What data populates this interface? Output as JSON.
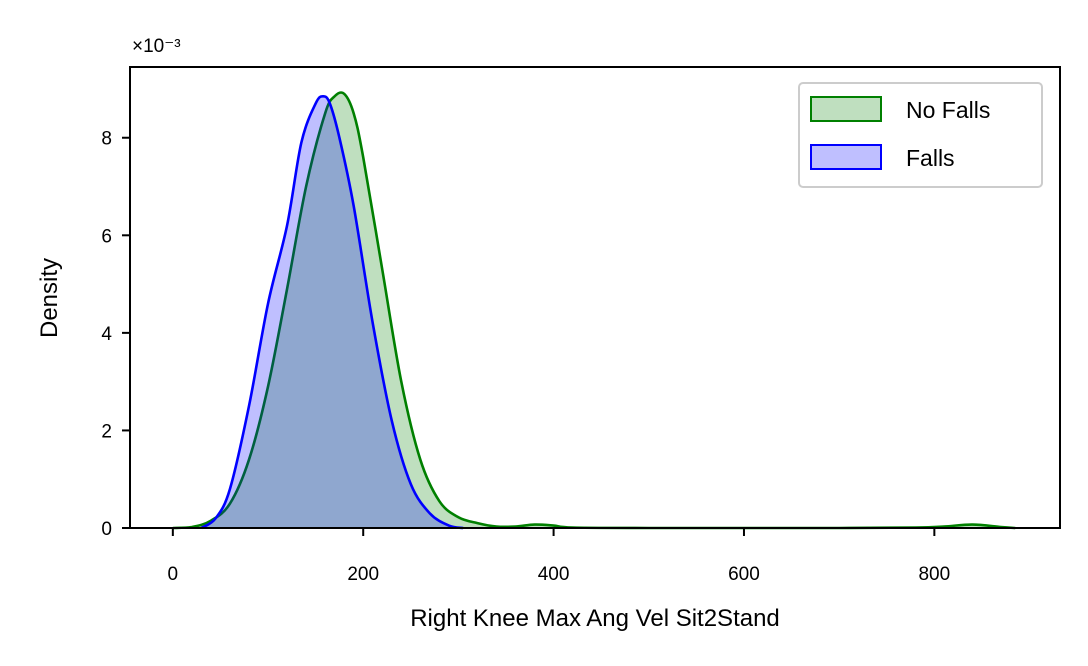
{
  "chart_data": {
    "type": "area",
    "xlabel": "Right Knee Max Ang Vel Sit2Stand",
    "ylabel": "Density",
    "y_offset_label": "×10⁻³",
    "xlim": [
      -45,
      932
    ],
    "ylim": [
      0,
      9.45
    ],
    "xticks": [
      0,
      200,
      400,
      600,
      800
    ],
    "xtick_labels": [
      "0",
      "200",
      "400",
      "600",
      "800"
    ],
    "yticks": [
      0,
      2,
      4,
      6,
      8
    ],
    "ytick_labels": [
      "0",
      "2",
      "4",
      "6",
      "8"
    ],
    "y_unit_scale": "1e-3",
    "grid": false,
    "legend_position": "top-right",
    "series": [
      {
        "name": "No Falls",
        "line_color": "#008000",
        "fill_color": "#008000",
        "fill_opacity": 0.25,
        "x": [
          0,
          20,
          40,
          60,
          80,
          100,
          120,
          140,
          160,
          170,
          180,
          190,
          200,
          220,
          240,
          260,
          280,
          300,
          320,
          340,
          360,
          380,
          400,
          420,
          500,
          600,
          700,
          780,
          810,
          840,
          870,
          885
        ],
        "y": [
          0,
          0.02,
          0.15,
          0.5,
          1.4,
          2.9,
          4.9,
          7.0,
          8.5,
          8.85,
          8.9,
          8.5,
          7.6,
          5.3,
          3.0,
          1.4,
          0.55,
          0.22,
          0.1,
          0.03,
          0.03,
          0.07,
          0.05,
          0.01,
          0.0,
          0.0,
          0.0,
          0.01,
          0.03,
          0.07,
          0.02,
          0.0
        ]
      },
      {
        "name": "Falls",
        "line_color": "#0000ff",
        "fill_color": "#0000ff",
        "fill_opacity": 0.25,
        "x": [
          30,
          45,
          60,
          80,
          100,
          120,
          135,
          150,
          158,
          165,
          175,
          190,
          210,
          230,
          250,
          270,
          290,
          305
        ],
        "y": [
          0,
          0.2,
          0.8,
          2.5,
          4.6,
          6.2,
          7.9,
          8.7,
          8.85,
          8.7,
          8.0,
          6.6,
          4.2,
          2.2,
          0.9,
          0.3,
          0.05,
          0
        ]
      }
    ]
  }
}
